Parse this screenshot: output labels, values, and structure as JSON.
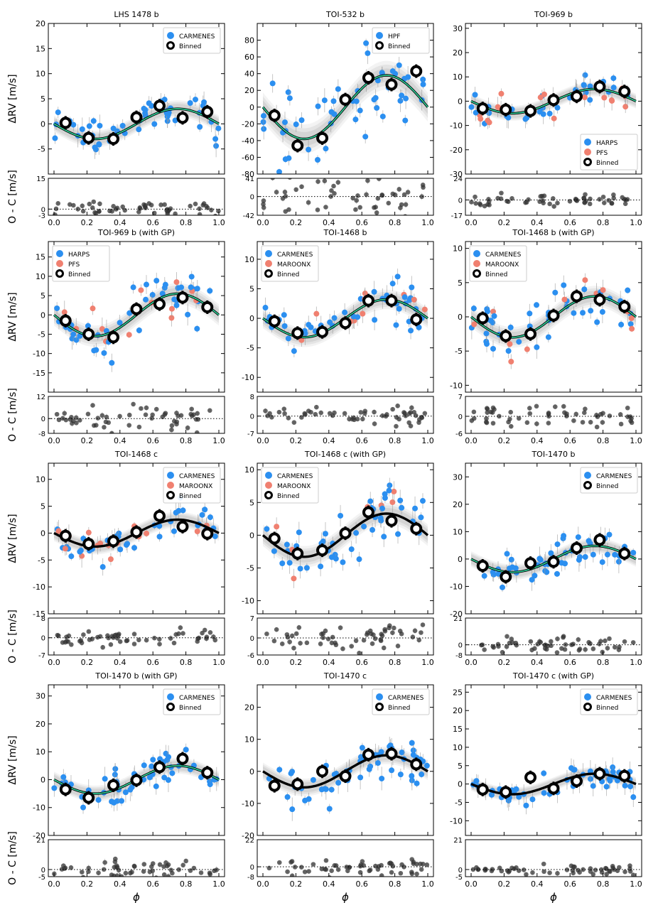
{
  "figure": {
    "ylabel_rv": "ΔRV [m/s]",
    "ylabel_oc": "O - C [m/s]",
    "xlabel": "ϕ"
  },
  "colors": {
    "carmenes": "#2b8ff0",
    "hpf": "#2b8ff0",
    "harps": "#2b8ff0",
    "pfs": "#f08070",
    "maroonx": "#f08070",
    "model_green": "#2fd39a",
    "model_black": "#000000",
    "band": "#9a9a9a",
    "residual": "#333333"
  },
  "chart_data": [
    {
      "type": "scatter",
      "title": "LHS 1478 b",
      "ylim": [
        -10,
        20
      ],
      "yticks": [
        -5,
        0,
        5,
        10,
        15,
        20
      ],
      "oc_ylim": [
        -3,
        15
      ],
      "oc_ticks": [
        -3,
        0,
        15
      ],
      "model": "green",
      "amp": 3.0,
      "binned": [
        [
          0.07,
          0.2
        ],
        [
          0.21,
          -2.8
        ],
        [
          0.36,
          -3.0
        ],
        [
          0.5,
          1.3
        ],
        [
          0.64,
          3.6
        ],
        [
          0.78,
          1.2
        ],
        [
          0.93,
          2.4
        ]
      ],
      "legend": [
        "CARMENES",
        "Binned"
      ],
      "legend_loc": "top-right",
      "instruments": [
        "carmenes"
      ],
      "seed": 1
    },
    {
      "type": "scatter",
      "title": "TOI-532 b",
      "ylim": [
        -80,
        100
      ],
      "yticks": [
        -80,
        -60,
        -40,
        -20,
        0,
        20,
        40,
        60,
        80
      ],
      "oc_ylim": [
        -42,
        41
      ],
      "oc_ticks": [
        -42,
        0,
        41
      ],
      "model": "green",
      "amp": 38,
      "binned": [
        [
          0.07,
          -10
        ],
        [
          0.21,
          -46
        ],
        [
          0.36,
          -37
        ],
        [
          0.5,
          9
        ],
        [
          0.64,
          35
        ],
        [
          0.78,
          27
        ],
        [
          0.93,
          43
        ]
      ],
      "legend": [
        "HPF",
        "Binned"
      ],
      "legend_loc": "top-right",
      "instruments": [
        "hpf"
      ],
      "seed": 2
    },
    {
      "type": "scatter",
      "title": "TOI-969 b",
      "ylim": [
        -30,
        32
      ],
      "yticks": [
        -30,
        -20,
        -10,
        0,
        10,
        20,
        30
      ],
      "oc_ylim": [
        -17,
        24
      ],
      "oc_ticks": [
        -17,
        0,
        24
      ],
      "model": "green",
      "amp": 5.0,
      "binned": [
        [
          0.07,
          -3
        ],
        [
          0.21,
          -3.5
        ],
        [
          0.36,
          -4
        ],
        [
          0.5,
          0.5
        ],
        [
          0.64,
          2
        ],
        [
          0.78,
          6
        ],
        [
          0.93,
          4
        ]
      ],
      "legend": [
        "HARPS",
        "PFS",
        "Binned"
      ],
      "legend_loc": "bottom-right",
      "instruments": [
        "harps",
        "pfs"
      ],
      "seed": 3
    },
    {
      "type": "scatter",
      "title": "TOI-969 b (with GP)",
      "ylim": [
        -20,
        19
      ],
      "yticks": [
        -15,
        -10,
        -5,
        0,
        5,
        10,
        15
      ],
      "oc_ylim": [
        -8,
        12
      ],
      "oc_ticks": [
        -8,
        0,
        12
      ],
      "model": "green",
      "amp": 5.5,
      "binned": [
        [
          0.07,
          -1.5
        ],
        [
          0.21,
          -5
        ],
        [
          0.36,
          -5.8
        ],
        [
          0.5,
          1.5
        ],
        [
          0.64,
          2.8
        ],
        [
          0.78,
          4.5
        ],
        [
          0.93,
          2
        ]
      ],
      "legend": [
        "HARPS",
        "PFS",
        "Binned"
      ],
      "legend_loc": "top-left",
      "instruments": [
        "harps",
        "pfs"
      ],
      "seed": 4
    },
    {
      "type": "scatter",
      "title": "TOI-1468 b",
      "ylim": [
        -12.5,
        13
      ],
      "yticks": [
        -10,
        -5,
        0,
        5,
        10
      ],
      "oc_ylim": [
        -7,
        8
      ],
      "oc_ticks": [
        -7,
        0,
        8
      ],
      "model": "green",
      "amp": 3.2,
      "binned": [
        [
          0.07,
          -0.5
        ],
        [
          0.21,
          -2.5
        ],
        [
          0.36,
          -2.3
        ],
        [
          0.5,
          -0.8
        ],
        [
          0.64,
          3
        ],
        [
          0.78,
          3
        ],
        [
          0.93,
          -0.2
        ]
      ],
      "legend": [
        "CARMENES",
        "MAROONX",
        "Binned"
      ],
      "legend_loc": "top-left",
      "instruments": [
        "carmenes",
        "maroonx"
      ],
      "seed": 5
    },
    {
      "type": "scatter",
      "title": "TOI-1468 b (with GP)",
      "ylim": [
        -11,
        11
      ],
      "yticks": [
        -10,
        -5,
        0,
        5,
        10
      ],
      "oc_ylim": [
        -6,
        7
      ],
      "oc_ticks": [
        -6,
        0,
        7
      ],
      "model": "green",
      "amp": 3.0,
      "binned": [
        [
          0.07,
          -0.2
        ],
        [
          0.21,
          -2.8
        ],
        [
          0.36,
          -2.5
        ],
        [
          0.5,
          0.2
        ],
        [
          0.64,
          3
        ],
        [
          0.78,
          2.5
        ],
        [
          0.93,
          1.5
        ]
      ],
      "legend": [
        "CARMENES",
        "MAROONX",
        "Binned"
      ],
      "legend_loc": "top-left",
      "instruments": [
        "carmenes",
        "maroonx"
      ],
      "seed": 6
    },
    {
      "type": "scatter",
      "title": "TOI-1468 c",
      "ylim": [
        -15,
        13
      ],
      "yticks": [
        -15,
        -10,
        -5,
        0,
        5,
        10
      ],
      "oc_ylim": [
        -7,
        8
      ],
      "oc_ticks": [
        -7,
        0,
        8
      ],
      "model": "black",
      "amp": 2.5,
      "binned": [
        [
          0.07,
          -0.5
        ],
        [
          0.21,
          -2
        ],
        [
          0.36,
          -1.5
        ],
        [
          0.5,
          0.2
        ],
        [
          0.64,
          3.2
        ],
        [
          0.78,
          1.2
        ],
        [
          0.93,
          -0.1
        ]
      ],
      "legend": [
        "CARMENES",
        "MAROONX",
        "Binned"
      ],
      "legend_loc": "top-right",
      "instruments": [
        "carmenes",
        "maroonx"
      ],
      "seed": 7
    },
    {
      "type": "scatter",
      "title": "TOI-1468 c (with GP)",
      "ylim": [
        -12,
        11
      ],
      "yticks": [
        -10,
        -5,
        0,
        5,
        10
      ],
      "oc_ylim": [
        -6,
        7
      ],
      "oc_ticks": [
        -6,
        0,
        7
      ],
      "model": "black",
      "amp": 3.3,
      "binned": [
        [
          0.07,
          -0.5
        ],
        [
          0.21,
          -2.8
        ],
        [
          0.36,
          -2.3
        ],
        [
          0.5,
          0.3
        ],
        [
          0.64,
          3.5
        ],
        [
          0.78,
          2.2
        ],
        [
          0.93,
          1
        ]
      ],
      "legend": [
        "CARMENES",
        "MAROONX",
        "Binned"
      ],
      "legend_loc": "top-left",
      "instruments": [
        "carmenes",
        "maroonx"
      ],
      "seed": 8
    },
    {
      "type": "scatter",
      "title": "TOI-1470 b",
      "ylim": [
        -20,
        35
      ],
      "yticks": [
        -20,
        -10,
        0,
        10,
        20,
        30
      ],
      "oc_ylim": [
        -8,
        21
      ],
      "oc_ticks": [
        -8,
        0,
        21
      ],
      "model": "green",
      "amp": 4.8,
      "binned": [
        [
          0.07,
          -2.5
        ],
        [
          0.21,
          -6.5
        ],
        [
          0.36,
          -1.5
        ],
        [
          0.5,
          -1
        ],
        [
          0.64,
          4
        ],
        [
          0.78,
          7
        ],
        [
          0.93,
          2
        ]
      ],
      "legend": [
        "CARMENES",
        "Binned"
      ],
      "legend_loc": "top-right",
      "instruments": [
        "carmenes"
      ],
      "seed": 9
    },
    {
      "type": "scatter",
      "title": "TOI-1470 b (with GP)",
      "ylim": [
        -20,
        34
      ],
      "yticks": [
        -20,
        -10,
        0,
        10,
        20,
        30
      ],
      "oc_ylim": [
        -5,
        21
      ],
      "oc_ticks": [
        -5,
        0,
        21
      ],
      "model": "green",
      "amp": 5.0,
      "binned": [
        [
          0.07,
          -3.5
        ],
        [
          0.21,
          -6.5
        ],
        [
          0.36,
          -2
        ],
        [
          0.5,
          -0.2
        ],
        [
          0.64,
          4.5
        ],
        [
          0.78,
          7.5
        ],
        [
          0.93,
          2.5
        ]
      ],
      "legend": [
        "CARMENES",
        "Binned"
      ],
      "legend_loc": "top-right",
      "instruments": [
        "carmenes"
      ],
      "seed": 10
    },
    {
      "type": "scatter",
      "title": "TOI-1470 c",
      "ylim": [
        -20,
        27
      ],
      "yticks": [
        -20,
        -10,
        0,
        10,
        20
      ],
      "oc_ylim": [
        -8,
        22
      ],
      "oc_ticks": [
        -8,
        0,
        22
      ],
      "model": "black",
      "amp": 5.0,
      "binned": [
        [
          0.07,
          -4.5
        ],
        [
          0.21,
          -4
        ],
        [
          0.36,
          0
        ],
        [
          0.5,
          -1.5
        ],
        [
          0.64,
          5.2
        ],
        [
          0.78,
          5.5
        ],
        [
          0.93,
          2.2
        ]
      ],
      "legend": [
        "CARMENES",
        "Binned"
      ],
      "legend_loc": "top-right",
      "instruments": [
        "carmenes"
      ],
      "seed": 11
    },
    {
      "type": "scatter",
      "title": "TOI-1470 c (with GP)",
      "ylim": [
        -14,
        27
      ],
      "yticks": [
        -10,
        -5,
        0,
        5,
        10,
        15,
        20,
        25
      ],
      "oc_ylim": [
        -5,
        21
      ],
      "oc_ticks": [
        -5,
        0,
        21
      ],
      "model": "black",
      "amp": 2.8,
      "binned": [
        [
          0.07,
          -1.5
        ],
        [
          0.21,
          -2.2
        ],
        [
          0.36,
          1.8
        ],
        [
          0.5,
          -1.2
        ],
        [
          0.64,
          0.8
        ],
        [
          0.78,
          2.8
        ],
        [
          0.93,
          2.2
        ]
      ],
      "legend": [
        "CARMENES",
        "Binned"
      ],
      "legend_loc": "top-right",
      "instruments": [
        "carmenes"
      ],
      "seed": 12
    }
  ],
  "legend_names": {
    "carmenes": "CARMENES",
    "hpf": "HPF",
    "harps": "HARPS",
    "pfs": "PFS",
    "maroonx": "MAROONX",
    "binned": "Binned"
  },
  "xticks": [
    "0.0",
    "0.2",
    "0.4",
    "0.6",
    "0.8",
    "1.0"
  ]
}
